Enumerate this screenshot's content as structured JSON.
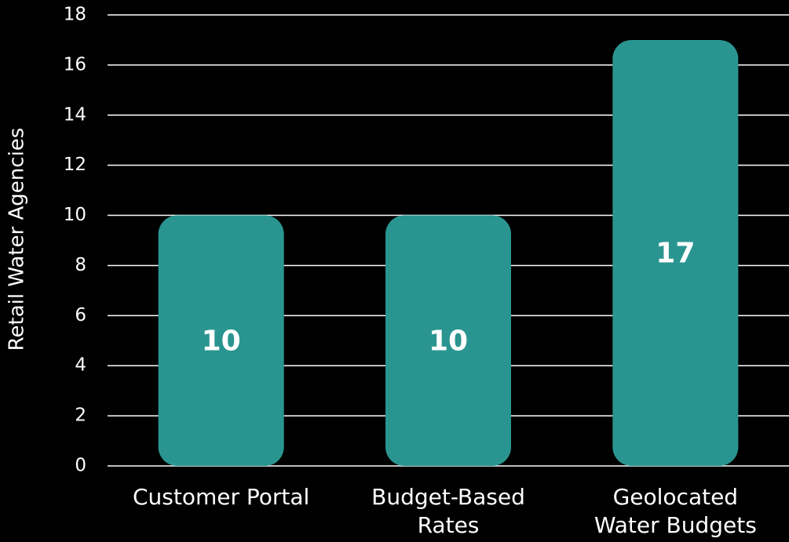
{
  "chart_data": {
    "type": "bar",
    "y_axis_label": "Retail Water Agencies",
    "categories": [
      "Customer Portal",
      "Budget-Based Rates",
      "Geolocated Water Budgets"
    ],
    "values": [
      10,
      10,
      17
    ],
    "color": "#2a9590",
    "ylim": [
      0,
      18
    ],
    "yticks": [
      0,
      2,
      4,
      6,
      8,
      10,
      12,
      14,
      16,
      18
    ],
    "grid": true
  }
}
